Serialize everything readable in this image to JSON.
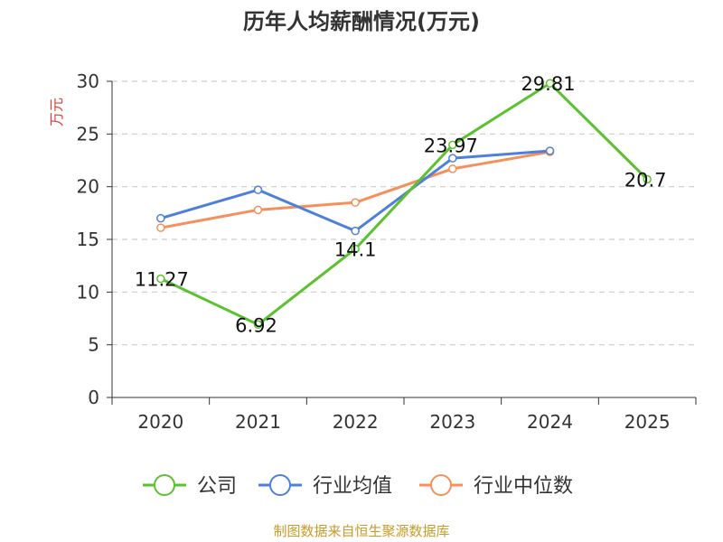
{
  "chart_data": {
    "type": "line",
    "title": "历年人均薪酬情况(万元)",
    "ylabel": "万元",
    "xlabel": "",
    "categories": [
      "2020",
      "2021",
      "2022",
      "2023",
      "2024",
      "2025"
    ],
    "ylim": [
      0,
      30
    ],
    "yticks": [
      "0",
      "5",
      "10",
      "15",
      "20",
      "25",
      "30"
    ],
    "grid": true,
    "legend_position": "bottom",
    "series": [
      {
        "name": "公司",
        "color": "#5bc12f",
        "values": [
          11.27,
          6.92,
          14.1,
          23.97,
          29.81,
          20.7
        ],
        "labels": [
          "11.27",
          "6.92",
          "14.1",
          "23.97",
          "29.81",
          "20.7"
        ]
      },
      {
        "name": "行业均值",
        "color": "#4e7fdb",
        "values": [
          17.0,
          19.7,
          15.8,
          22.7,
          23.4,
          null
        ],
        "labels": []
      },
      {
        "name": "行业中位数",
        "color": "#f5905b",
        "values": [
          16.1,
          17.8,
          18.5,
          21.7,
          23.3,
          null
        ],
        "labels": []
      }
    ]
  },
  "footer": {
    "source": "制图数据来自恒生聚源数据库"
  },
  "colors": {
    "title": "#333333",
    "ylabel": "#e03c3c",
    "footer": "#c89b2a",
    "grid": "#cccccc",
    "axis": "#333333"
  }
}
